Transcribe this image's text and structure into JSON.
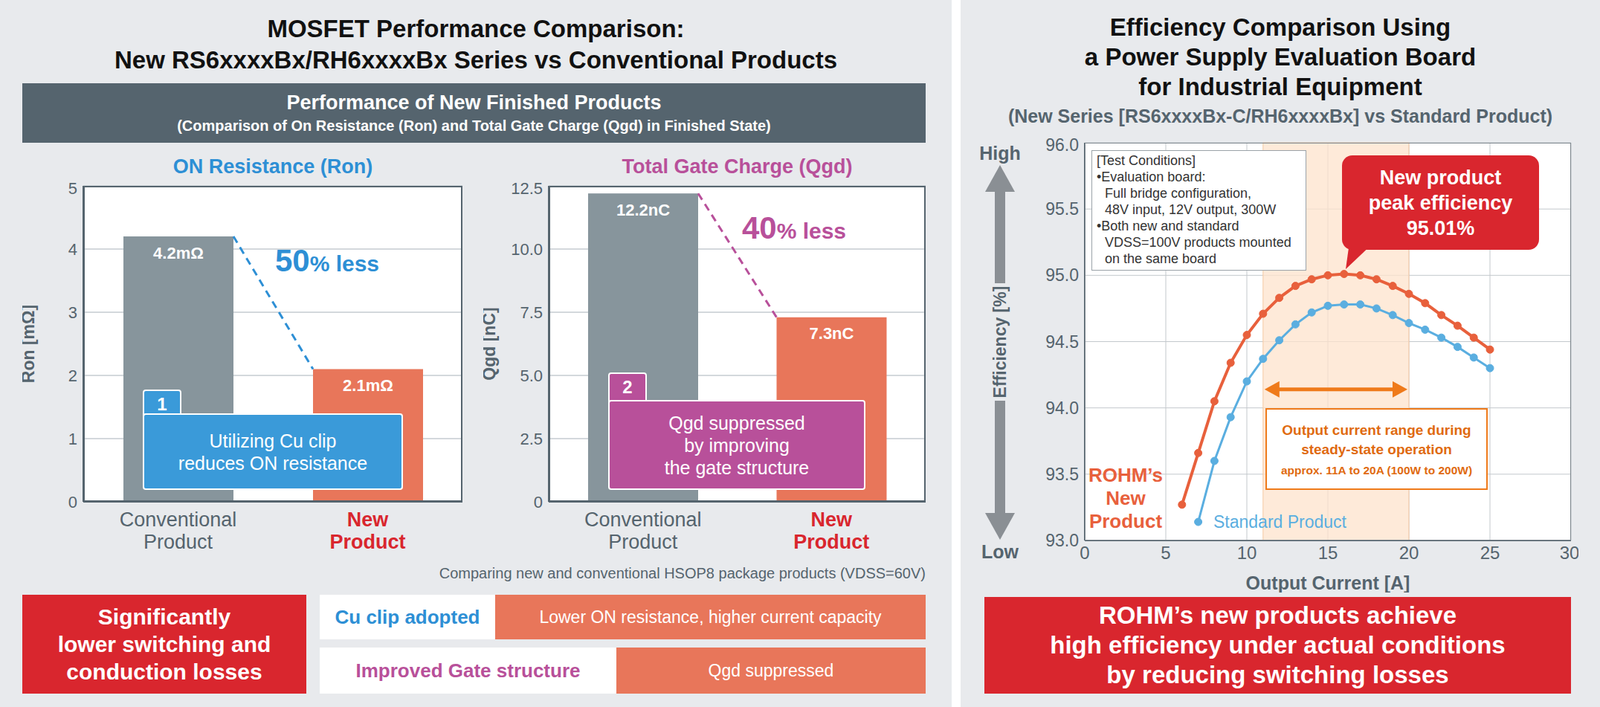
{
  "left_panel": {
    "title": [
      "MOSFET Performance Comparison:",
      "New RS6xxxxBx/RH6xxxxBx Series vs Conventional Products"
    ],
    "header": "Performance of New Finished Products",
    "header_subtitle": "(Comparison of On Resistance (Ron) and Total Gate Charge (Qgd) in Finished State)",
    "footnote": "Comparing new and conventional HSOP8 package products (VDSS=60V)",
    "summary": [
      "Significantly",
      "lower switching and",
      "conduction losses"
    ],
    "features": [
      {
        "label": "Cu clip adopted",
        "result": "Lower ON resistance, higher current capacity"
      },
      {
        "label": "Improved Gate structure",
        "result": "Qgd suppressed"
      }
    ]
  },
  "right_panel": {
    "summary": [
      "ROHM’s new products achieve",
      "high efficiency under actual conditions",
      "by reducing switching losses"
    ]
  },
  "chart_data": [
    {
      "type": "bar",
      "title": "ON Resistance (Ron)",
      "y_label": "Ron [mΩ]",
      "categories": [
        "Conventional Product",
        "New Product"
      ],
      "values": [
        4.2,
        2.1
      ],
      "value_labels": [
        "4.2mΩ",
        "2.1mΩ"
      ],
      "colors": [
        "#87959c",
        "#e8765a"
      ],
      "ylim": [
        0,
        5
      ],
      "yticks": [
        0,
        1,
        2,
        3,
        4,
        5
      ],
      "grid": true,
      "data_labels": true,
      "annotations": {
        "reduction": "50% less",
        "callout_number": "1",
        "callout": [
          "Utilizing Cu clip",
          "reduces ON resistance"
        ]
      }
    },
    {
      "type": "bar",
      "title": "Total Gate Charge (Qgd)",
      "y_label": "Qgd [nC]",
      "categories": [
        "Conventional Product",
        "New Product"
      ],
      "values": [
        12.2,
        7.3
      ],
      "value_labels": [
        "12.2nC",
        "7.3nC"
      ],
      "colors": [
        "#87959c",
        "#e8765a"
      ],
      "ylim": [
        0,
        12.5
      ],
      "yticks": [
        0,
        2.5,
        {
          "value": 5,
          "label": "5.0"
        },
        7.5,
        {
          "value": 10,
          "label": "10.0"
        },
        12.5
      ],
      "grid": true,
      "data_labels": true,
      "annotations": {
        "reduction": "40% less",
        "callout_number": "2",
        "callout": [
          "Qgd suppressed",
          "by improving",
          "the gate structure"
        ]
      }
    },
    {
      "type": "line",
      "title": [
        "Efficiency Comparison Using",
        "a Power Supply Evaluation Board",
        "for Industrial Equipment"
      ],
      "subtitle": "(New Series [RS6xxxxBx-C/RH6xxxxBx] vs Standard Product)",
      "x_label": "Output Current [A]",
      "y_label": "Efficiency [%]",
      "x": [
        6,
        7,
        8,
        9,
        10,
        11,
        12,
        13,
        14,
        15,
        16,
        17,
        18,
        19,
        20,
        21,
        22,
        23,
        24,
        25
      ],
      "series": [
        {
          "name": "ROHM’s New Product",
          "color": "#e8603c",
          "values": [
            93.27,
            93.66,
            94.05,
            94.34,
            94.55,
            94.71,
            94.83,
            94.92,
            94.97,
            95.0,
            95.01,
            95.0,
            94.97,
            94.92,
            94.86,
            94.79,
            94.7,
            94.62,
            94.53,
            94.44
          ]
        },
        {
          "name": "Standard Product",
          "color": "#5aaee0",
          "values": [
            null,
            93.14,
            93.6,
            93.93,
            94.2,
            94.37,
            94.51,
            94.63,
            94.72,
            94.77,
            94.78,
            94.78,
            94.75,
            94.7,
            94.64,
            94.59,
            94.53,
            94.46,
            94.38,
            94.3
          ]
        }
      ],
      "xlim": [
        0,
        30
      ],
      "xticks": [
        0,
        5,
        10,
        15,
        20,
        25,
        30
      ],
      "ylim": [
        93,
        96
      ],
      "yticks": [
        {
          "value": 93,
          "label": "93.0"
        },
        93.5,
        {
          "value": 94,
          "label": "94.0"
        },
        94.5,
        {
          "value": 95,
          "label": "95.0"
        },
        95.5,
        {
          "value": 96,
          "label": "96.0"
        }
      ],
      "grid": true,
      "marker": "circle",
      "annotations": {
        "y_high": "High",
        "y_low": "Low",
        "test_conditions": [
          "[Test Conditions]",
          "•Evaluation board:",
          "Full bridge configuration,",
          "48V input, 12V output, 300W",
          "•Both new and standard",
          "VDSS=100V products mounted",
          "on the same board"
        ],
        "peak_label": [
          "New product",
          "peak efficiency",
          "95.01%"
        ],
        "range": {
          "x": [
            11,
            20
          ],
          "label": [
            "Output current range during",
            "steady-state operation"
          ],
          "detail": "approx. 11A to 20A (100W to 200W)"
        }
      }
    }
  ]
}
